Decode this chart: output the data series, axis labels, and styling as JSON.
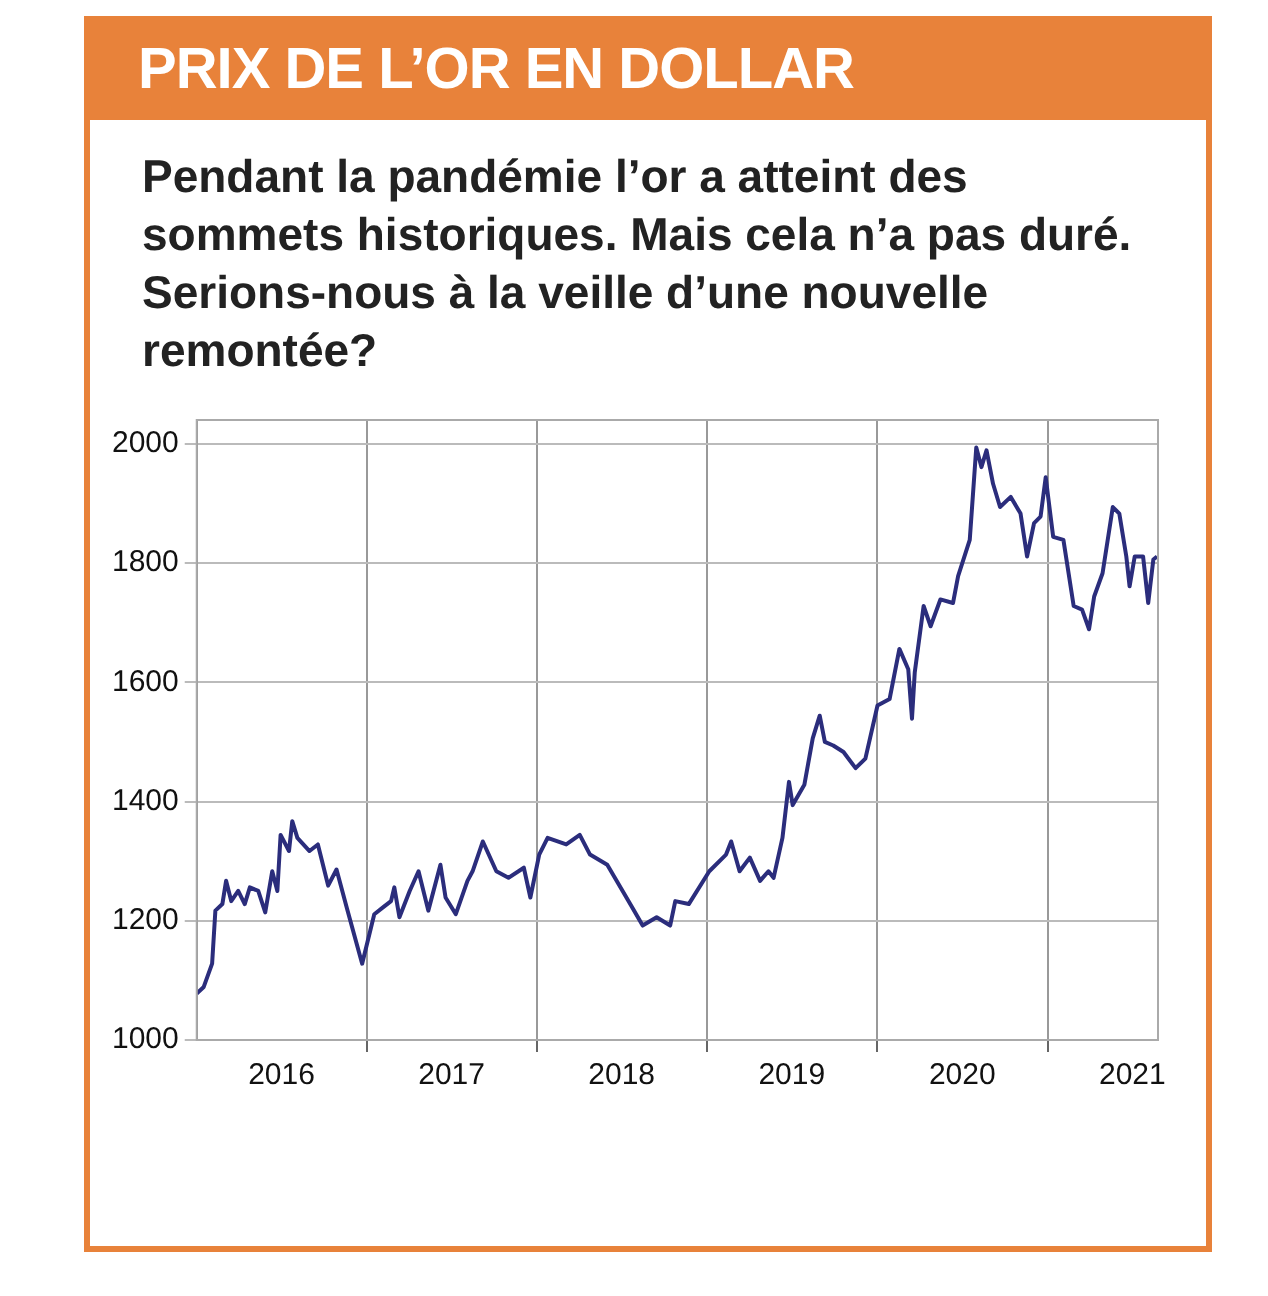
{
  "chart_data": {
    "type": "line",
    "title": "PRIX DE L’OR EN DOLLAR",
    "subtitle": "Pendant la pandémie l’or a atteint des sommets historiques. Mais cela n’a pas duré. Serions-nous à la veille d’une nouvelle remontée?",
    "x": [
      "2016-01-01",
      "2016-01-16",
      "2016-02-03",
      "2016-02-10",
      "2016-02-25",
      "2016-03-04",
      "2016-03-15",
      "2016-03-30",
      "2016-04-13",
      "2016-04-24",
      "2016-05-12",
      "2016-05-27",
      "2016-06-11",
      "2016-06-22",
      "2016-06-29",
      "2016-07-17",
      "2016-07-24",
      "2016-08-04",
      "2016-08-30",
      "2016-09-17",
      "2016-10-09",
      "2016-10-27",
      "2016-11-18",
      "2016-12-21",
      "2017-01-16",
      "2017-02-03",
      "2017-02-21",
      "2017-02-28",
      "2017-03-11",
      "2017-04-02",
      "2017-04-21",
      "2017-05-12",
      "2017-06-07",
      "2017-06-18",
      "2017-07-10",
      "2017-08-04",
      "2017-08-15",
      "2017-09-06",
      "2017-10-05",
      "2017-10-31",
      "2017-12-03",
      "2017-12-17",
      "2018-01-05",
      "2018-01-23",
      "2018-03-04",
      "2018-04-02",
      "2018-04-24",
      "2018-05-31",
      "2018-07-03",
      "2018-07-24",
      "2018-08-15",
      "2018-09-14",
      "2018-10-13",
      "2018-10-24",
      "2018-11-22",
      "2019-01-05",
      "2019-02-10",
      "2019-02-21",
      "2019-03-11",
      "2019-04-02",
      "2019-04-24",
      "2019-05-12",
      "2019-05-23",
      "2019-06-11",
      "2019-06-25",
      "2019-07-03",
      "2019-07-28",
      "2019-08-15",
      "2019-08-30",
      "2019-09-10",
      "2019-09-28",
      "2019-10-20",
      "2019-11-15",
      "2019-12-06",
      "2020-01-01",
      "2020-01-27",
      "2020-02-17",
      "2020-03-07",
      "2020-03-15",
      "2020-03-21",
      "2020-04-09",
      "2020-04-24",
      "2020-05-15",
      "2020-06-11",
      "2020-06-22",
      "2020-07-17",
      "2020-07-31",
      "2020-08-11",
      "2020-08-22",
      "2020-09-05",
      "2020-09-20",
      "2020-10-13",
      "2020-11-03",
      "2020-11-17",
      "2020-12-02",
      "2020-12-16",
      "2020-12-27",
      "2021-01-12",
      "2021-02-03",
      "2021-02-25",
      "2021-03-15",
      "2021-03-30",
      "2021-04-10",
      "2021-04-28",
      "2021-05-20",
      "2021-06-03",
      "2021-06-18",
      "2021-06-25",
      "2021-07-06",
      "2021-07-24",
      "2021-08-04",
      "2021-08-15",
      "2021-08-23"
    ],
    "series": [
      {
        "color": "#2b2d7c",
        "values": [
          1078,
          1089,
          1128,
          1217,
          1228,
          1267,
          1233,
          1250,
          1228,
          1256,
          1250,
          1214,
          1283,
          1250,
          1344,
          1317,
          1367,
          1339,
          1317,
          1328,
          1259,
          1286,
          1222,
          1128,
          1211,
          1222,
          1233,
          1256,
          1206,
          1250,
          1283,
          1217,
          1294,
          1239,
          1211,
          1267,
          1283,
          1333,
          1283,
          1272,
          1289,
          1239,
          1311,
          1339,
          1328,
          1344,
          1311,
          1294,
          1250,
          1222,
          1192,
          1206,
          1192,
          1233,
          1228,
          1283,
          1311,
          1333,
          1283,
          1306,
          1267,
          1283,
          1272,
          1339,
          1433,
          1394,
          1428,
          1506,
          1544,
          1500,
          1494,
          1483,
          1456,
          1472,
          1561,
          1572,
          1656,
          1622,
          1539,
          1617,
          1728,
          1694,
          1739,
          1733,
          1778,
          1839,
          1994,
          1961,
          1989,
          1933,
          1894,
          1911,
          1883,
          1811,
          1867,
          1878,
          1944,
          1844,
          1839,
          1728,
          1722,
          1689,
          1744,
          1783,
          1894,
          1883,
          1811,
          1761,
          1811,
          1811,
          1733,
          1806,
          1811
        ]
      }
    ],
    "xlim": [
      "2016-01-01",
      "2021-08-25"
    ],
    "xticks": [
      {
        "value": "2016-07-01",
        "label": "2016"
      },
      {
        "value": "2017-01-01",
        "label": null
      },
      {
        "value": "2017-07-01",
        "label": "2017"
      },
      {
        "value": "2018-01-01",
        "label": null
      },
      {
        "value": "2018-07-01",
        "label": "2018"
      },
      {
        "value": "2019-01-01",
        "label": null
      },
      {
        "value": "2019-07-01",
        "label": "2019"
      },
      {
        "value": "2020-01-01",
        "label": null
      },
      {
        "value": "2020-07-01",
        "label": "2020"
      },
      {
        "value": "2021-01-01",
        "label": null
      },
      {
        "value": "2021-07-01",
        "label": "2021"
      }
    ],
    "ylim": [
      1000,
      2040
    ],
    "yticks": [
      1000,
      1200,
      1400,
      1600,
      1800,
      2000
    ],
    "grid": true,
    "legend": false,
    "marker": "none",
    "line_style": "solid"
  }
}
